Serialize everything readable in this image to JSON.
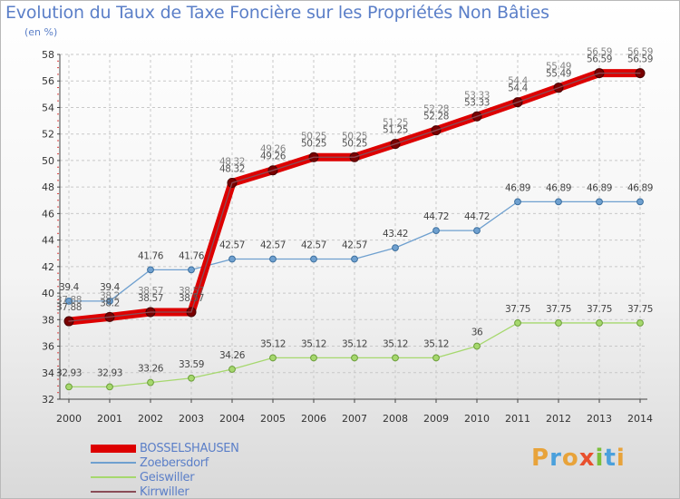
{
  "chart_data": {
    "type": "line",
    "title": "Evolution du Taux de Taxe Foncière sur les Propriétés Non Bâties",
    "subtitle": "(en %)",
    "xlabel": "",
    "ylabel": "",
    "ylim": [
      32,
      58
    ],
    "yticks": [
      "32",
      "34",
      "36",
      "38",
      "40",
      "42",
      "44",
      "46",
      "48",
      "50",
      "52",
      "54",
      "56",
      "58"
    ],
    "categories": [
      "2000",
      "2001",
      "2002",
      "2003",
      "2004",
      "2005",
      "2006",
      "2007",
      "2008",
      "2009",
      "2010",
      "2011",
      "2012",
      "2013",
      "2014"
    ],
    "grid": true,
    "series": [
      {
        "name": "BOSSELSHAUSEN",
        "color": "#dd0000",
        "values": [
          37.88,
          38.2,
          38.57,
          38.57,
          48.32,
          49.26,
          50.25,
          50.25,
          51.25,
          52.28,
          53.33,
          54.4,
          55.49,
          56.59,
          56.59
        ],
        "labels": [
          "37.88",
          "38.2",
          "38.57",
          "38.57",
          "48.32",
          "49.26",
          "50.25",
          "50.25",
          "51.25",
          "52.28",
          "53.33",
          "54.4",
          "55.49",
          "56.59",
          "56.59"
        ]
      },
      {
        "name": "Zoebersdorf",
        "color": "#6fa0cf",
        "values": [
          39.4,
          39.4,
          41.76,
          41.76,
          42.57,
          42.57,
          42.57,
          42.57,
          43.42,
          44.72,
          44.72,
          46.89,
          46.89,
          46.89,
          46.89
        ],
        "labels": [
          "39.4",
          "39.4",
          "41.76",
          "41.76",
          "42.57",
          "42.57",
          "42.57",
          "42.57",
          "43.42",
          "44.72",
          "44.72",
          "46.89",
          "46.89",
          "46.89",
          "46.89"
        ]
      },
      {
        "name": "Geiswiller",
        "color": "#a6d86e",
        "values": [
          32.93,
          32.93,
          33.26,
          33.59,
          34.26,
          35.12,
          35.12,
          35.12,
          35.12,
          35.12,
          36,
          37.75,
          37.75,
          37.75,
          37.75
        ],
        "labels": [
          "32.93",
          "32.93",
          "33.26",
          "33.59",
          "34.26",
          "35.12",
          "35.12",
          "35.12",
          "35.12",
          "35.12",
          "36",
          "37.75",
          "37.75",
          "37.75",
          "37.75"
        ]
      },
      {
        "name": "Kirrwiller",
        "color": "#8a4d57",
        "values": [
          37.88,
          38.2,
          38.57,
          38.57,
          48.32,
          49.26,
          50.25,
          50.25,
          51.25,
          52.28,
          53.33,
          54.4,
          55.49,
          56.59,
          56.59
        ],
        "labels": [
          "37.88",
          "38.2",
          "38.57",
          "38.57",
          "48.32",
          "49.26",
          "50.25",
          "50.25",
          "51.25",
          "52.28",
          "53.33",
          "54.4",
          "55.49",
          "56.59",
          "56.59"
        ]
      }
    ],
    "legend": [
      "BOSSELSHAUSEN",
      "Zoebersdorf",
      "Geiswiller",
      "Kirrwiller"
    ],
    "legend_position": "bottom-left"
  },
  "logo": {
    "text": "Proxiti",
    "letters": [
      "P",
      "r",
      "o",
      "x",
      "i",
      "t",
      "i"
    ],
    "colors": [
      "#e8a33a",
      "#4aa0dc",
      "#e8a33a",
      "#e8502e",
      "#7bbf3a",
      "#4aa0dc",
      "#e8a33a"
    ]
  }
}
